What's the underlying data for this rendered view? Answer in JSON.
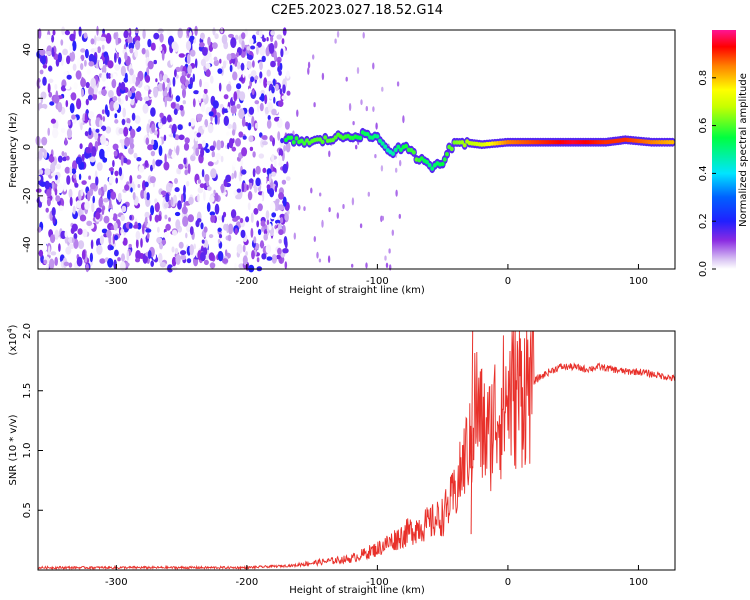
{
  "title": "C2E5.2023.027.18.52.G14",
  "chart_data": [
    {
      "type": "heatmap",
      "xlabel": "Height of straight line (km)",
      "ylabel": "Frequency (Hz)",
      "xlim": [
        -360,
        128
      ],
      "ylim": [
        -50,
        48
      ],
      "xticks": [
        -300,
        -200,
        -100,
        0,
        100
      ],
      "yticks": [
        -40,
        -20,
        0,
        20,
        40
      ],
      "colorbar": {
        "label": "Normalized spectral amplitude",
        "range": [
          0,
          1
        ],
        "ticks": [
          0.0,
          0.2,
          0.4,
          0.6,
          0.8
        ],
        "colormap": [
          "#ffffff",
          "#c9a8ef",
          "#8a2be2",
          "#2020ff",
          "#00e5ff",
          "#00ff40",
          "#ffff00",
          "#ff7f00",
          "#ff0000",
          "#ff1493"
        ]
      },
      "noise_region_x": [
        -360,
        -168
      ],
      "trace": [
        {
          "x": -170,
          "f": 3,
          "amp": 0.55
        },
        {
          "x": -150,
          "f": 2,
          "amp": 0.6
        },
        {
          "x": -130,
          "f": 4,
          "amp": 0.6
        },
        {
          "x": -115,
          "f": 5,
          "amp": 0.55
        },
        {
          "x": -100,
          "f": 4,
          "amp": 0.5
        },
        {
          "x": -90,
          "f": -2,
          "amp": 0.45
        },
        {
          "x": -80,
          "f": 0,
          "amp": 0.55
        },
        {
          "x": -70,
          "f": -4,
          "amp": 0.6
        },
        {
          "x": -60,
          "f": -8,
          "amp": 0.5
        },
        {
          "x": -50,
          "f": -6,
          "amp": 0.55
        },
        {
          "x": -45,
          "f": 0,
          "amp": 0.6
        },
        {
          "x": -35,
          "f": 2,
          "amp": 0.65
        },
        {
          "x": -20,
          "f": 1,
          "amp": 0.7
        },
        {
          "x": 0,
          "f": 2,
          "amp": 0.85
        },
        {
          "x": 25,
          "f": 2,
          "amp": 0.9
        },
        {
          "x": 50,
          "f": 2,
          "amp": 0.95
        },
        {
          "x": 75,
          "f": 2,
          "amp": 0.9
        },
        {
          "x": 90,
          "f": 3,
          "amp": 0.9
        },
        {
          "x": 110,
          "f": 2,
          "amp": 0.85
        },
        {
          "x": 128,
          "f": 2,
          "amp": 0.8
        }
      ]
    },
    {
      "type": "line",
      "xlabel": "Height of straight line (km)",
      "ylabel": "SNR (10 * v/v)",
      "y_multiplier": "(x10",
      "y_multiplier_exp": "4",
      "y_multiplier_close": ")",
      "xlim": [
        -360,
        128
      ],
      "ylim": [
        0,
        2.0
      ],
      "xticks": [
        -300,
        -200,
        -100,
        0,
        100
      ],
      "yticks": [
        0.5,
        1.0,
        1.5,
        2.0
      ],
      "ytick_labels": [
        "0.5",
        "1.0",
        "1.5",
        "2.0"
      ],
      "color": "#e8302a",
      "series": [
        {
          "x": [
            -360,
            -300,
            -250,
            -200,
            -180,
            -160,
            -140,
            -120,
            -100,
            -90,
            -80,
            -70,
            -60,
            -50,
            -40,
            -30,
            -25,
            -20,
            -15,
            -10,
            -5,
            0,
            10,
            20,
            30,
            40,
            50,
            60,
            70,
            80,
            90,
            100,
            110,
            120,
            128
          ],
          "values": [
            0.02,
            0.02,
            0.02,
            0.02,
            0.03,
            0.04,
            0.06,
            0.08,
            0.15,
            0.2,
            0.25,
            0.3,
            0.33,
            0.38,
            0.55,
            0.9,
            1.4,
            1.2,
            1.1,
            1.3,
            1.35,
            1.45,
            1.52,
            1.58,
            1.65,
            1.7,
            1.7,
            1.68,
            1.7,
            1.68,
            1.66,
            1.66,
            1.64,
            1.62,
            1.6
          ]
        }
      ],
      "max_spike": {
        "x": -27,
        "y": 2.0
      }
    }
  ]
}
